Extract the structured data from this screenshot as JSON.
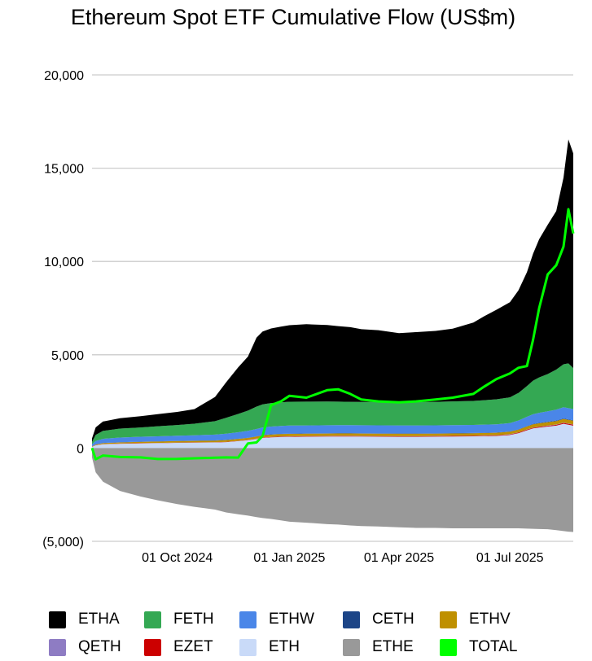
{
  "chart_data": {
    "type": "area",
    "title": "Ethereum Spot ETF Cumulative Flow (US$m)",
    "xlabel": "",
    "ylabel": "",
    "ylim": [
      -5000,
      20000
    ],
    "yticks": [
      -5000,
      0,
      5000,
      10000,
      15000,
      20000
    ],
    "ytick_labels": [
      "(5,000)",
      "0",
      "5,000",
      "10,000",
      "15,000",
      "20,000"
    ],
    "xlim": [
      "2024-07-23",
      "2025-08-22"
    ],
    "xticks": [
      "2024-10-01",
      "2025-01-01",
      "2025-04-01",
      "2025-07-01"
    ],
    "xtick_labels": [
      "01 Oct 2024",
      "01 Jan 2025",
      "01 Apr 2025",
      "01 Jul 2025"
    ],
    "grid": true,
    "legend_position": "bottom",
    "stacked": true,
    "x": [
      "2024-07-23",
      "2024-07-26",
      "2024-08-01",
      "2024-08-15",
      "2024-09-01",
      "2024-09-15",
      "2024-10-01",
      "2024-10-15",
      "2024-11-01",
      "2024-11-10",
      "2024-11-20",
      "2024-11-28",
      "2024-12-05",
      "2024-12-10",
      "2024-12-17",
      "2024-12-25",
      "2025-01-01",
      "2025-01-15",
      "2025-02-01",
      "2025-02-10",
      "2025-02-20",
      "2025-03-01",
      "2025-03-15",
      "2025-04-01",
      "2025-04-15",
      "2025-05-01",
      "2025-05-15",
      "2025-06-01",
      "2025-06-10",
      "2025-06-20",
      "2025-07-01",
      "2025-07-08",
      "2025-07-15",
      "2025-07-20",
      "2025-07-25",
      "2025-08-01",
      "2025-08-08",
      "2025-08-14",
      "2025-08-18",
      "2025-08-22"
    ],
    "series": [
      {
        "name": "ETHE",
        "color": "#999999",
        "values": [
          -500,
          -1300,
          -1800,
          -2300,
          -2600,
          -2800,
          -3000,
          -3150,
          -3300,
          -3450,
          -3550,
          -3620,
          -3700,
          -3750,
          -3800,
          -3880,
          -3950,
          -4000,
          -4080,
          -4100,
          -4150,
          -4180,
          -4200,
          -4250,
          -4280,
          -4280,
          -4300,
          -4300,
          -4300,
          -4300,
          -4300,
          -4300,
          -4320,
          -4330,
          -4340,
          -4350,
          -4400,
          -4450,
          -4480,
          -4500
        ]
      },
      {
        "name": "ETH",
        "color": "#c9daf8",
        "values": [
          60,
          150,
          200,
          230,
          250,
          260,
          280,
          290,
          300,
          320,
          370,
          420,
          480,
          540,
          570,
          590,
          600,
          610,
          615,
          620,
          620,
          615,
          610,
          605,
          605,
          610,
          620,
          630,
          640,
          650,
          700,
          800,
          950,
          1050,
          1100,
          1150,
          1200,
          1300,
          1250,
          1200
        ]
      },
      {
        "name": "EZET",
        "color": "#cc0000",
        "values": [
          4,
          6,
          8,
          9,
          10,
          10,
          10,
          10,
          11,
          12,
          13,
          15,
          18,
          20,
          22,
          23,
          24,
          25,
          26,
          27,
          27,
          27,
          27,
          27,
          27,
          28,
          28,
          28,
          29,
          29,
          30,
          32,
          35,
          38,
          40,
          42,
          45,
          48,
          48,
          48
        ]
      },
      {
        "name": "QETH",
        "color": "#8e7cc3",
        "values": [
          2,
          3,
          4,
          4,
          5,
          5,
          5,
          5,
          5,
          6,
          6,
          7,
          8,
          8,
          9,
          9,
          10,
          10,
          10,
          10,
          10,
          10,
          10,
          10,
          10,
          10,
          10,
          10,
          10,
          10,
          10,
          11,
          12,
          13,
          13,
          14,
          15,
          16,
          16,
          16
        ]
      },
      {
        "name": "ETHV",
        "color": "#bf9000",
        "values": [
          20,
          30,
          50,
          60,
          70,
          75,
          80,
          80,
          85,
          90,
          95,
          100,
          110,
          115,
          120,
          122,
          125,
          125,
          125,
          125,
          125,
          125,
          125,
          125,
          125,
          125,
          125,
          125,
          128,
          130,
          135,
          145,
          160,
          170,
          175,
          180,
          190,
          200,
          200,
          200
        ]
      },
      {
        "name": "CETH",
        "color": "#1c4587",
        "values": [
          5,
          8,
          10,
          10,
          10,
          10,
          10,
          10,
          10,
          11,
          12,
          13,
          14,
          15,
          15,
          15,
          15,
          15,
          15,
          15,
          15,
          15,
          15,
          15,
          15,
          15,
          15,
          15,
          15,
          15,
          15,
          16,
          18,
          20,
          21,
          22,
          24,
          25,
          25,
          25
        ]
      },
      {
        "name": "ETHW",
        "color": "#4a86e8",
        "values": [
          110,
          180,
          220,
          250,
          260,
          270,
          280,
          290,
          310,
          330,
          350,
          370,
          390,
          405,
          415,
          425,
          430,
          430,
          430,
          430,
          430,
          430,
          430,
          430,
          430,
          430,
          430,
          430,
          435,
          440,
          450,
          470,
          500,
          520,
          540,
          560,
          580,
          600,
          600,
          600
        ]
      },
      {
        "name": "FETH",
        "color": "#34a853",
        "values": [
          120,
          330,
          430,
          480,
          500,
          540,
          570,
          620,
          720,
          850,
          980,
          1080,
          1200,
          1240,
          1260,
          1270,
          1280,
          1270,
          1270,
          1260,
          1250,
          1250,
          1250,
          1250,
          1250,
          1260,
          1270,
          1290,
          1310,
          1340,
          1380,
          1480,
          1650,
          1800,
          1900,
          2000,
          2150,
          2300,
          2400,
          2200
        ]
      },
      {
        "name": "ETHA",
        "color": "#000000",
        "values": [
          200,
          400,
          500,
          560,
          600,
          650,
          700,
          780,
          1300,
          1900,
          2500,
          2900,
          3700,
          3900,
          4000,
          4050,
          4100,
          4150,
          4100,
          4050,
          4000,
          3900,
          3850,
          3700,
          3750,
          3800,
          3900,
          4200,
          4500,
          4800,
          5100,
          5500,
          6100,
          6800,
          7400,
          8000,
          8500,
          10000,
          12000,
          11500
        ]
      }
    ],
    "total": {
      "name": "TOTAL",
      "color": "#00ff00",
      "values": [
        0,
        -600,
        -400,
        -480,
        -500,
        -590,
        -580,
        -550,
        -520,
        -500,
        -510,
        250,
        300,
        650,
        2300,
        2500,
        2800,
        2700,
        3100,
        3150,
        2900,
        2600,
        2500,
        2450,
        2500,
        2600,
        2700,
        2900,
        3300,
        3700,
        4000,
        4300,
        4400,
        5800,
        7500,
        9300,
        9800,
        10800,
        12800,
        11500
      ]
    }
  },
  "legend": [
    [
      {
        "label": "ETHA",
        "color": "#000000"
      },
      {
        "label": "FETH",
        "color": "#34a853"
      },
      {
        "label": "ETHW",
        "color": "#4a86e8"
      },
      {
        "label": "CETH",
        "color": "#1c4587"
      },
      {
        "label": "ETHV",
        "color": "#bf9000"
      }
    ],
    [
      {
        "label": "QETH",
        "color": "#8e7cc3"
      },
      {
        "label": "EZET",
        "color": "#cc0000"
      },
      {
        "label": "ETH",
        "color": "#c9daf8"
      },
      {
        "label": "ETHE",
        "color": "#999999"
      },
      {
        "label": "TOTAL",
        "color": "#00ff00"
      }
    ]
  ]
}
